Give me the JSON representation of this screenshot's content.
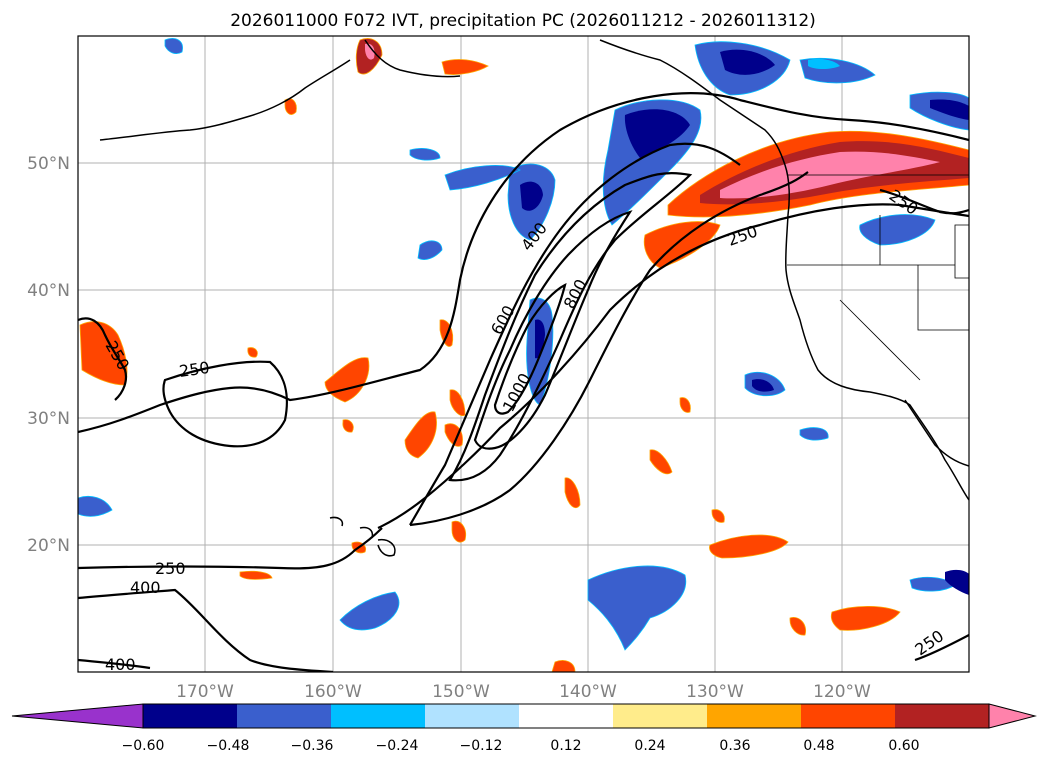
{
  "title": "2026011000 F072 IVT, precipitation PC (2026011212 - 2026011312)",
  "map": {
    "lon_labels": [
      "170°W",
      "160°W",
      "150°W",
      "140°W",
      "130°W",
      "120°W"
    ],
    "lat_labels": [
      "50°N",
      "40°N",
      "30°N",
      "20°N"
    ],
    "ivt_contour_labels": [
      "250",
      "400",
      "600",
      "800",
      "1000"
    ]
  },
  "colorbar": {
    "ticks": [
      "−0.60",
      "−0.48",
      "−0.36",
      "−0.24",
      "−0.12",
      "0.12",
      "0.24",
      "0.36",
      "0.48",
      "0.60"
    ],
    "colors": [
      "#9932cc",
      "#00008b",
      "#3a5fcd",
      "#00bfff",
      "#b0e2ff",
      "#ffffff",
      "#ffec8b",
      "#ffa500",
      "#ff4500",
      "#b22222",
      "#ff82ab"
    ]
  }
}
